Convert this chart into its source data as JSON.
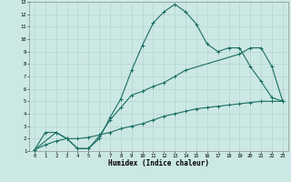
{
  "title": "",
  "xlabel": "Humidex (Indice chaleur)",
  "ylabel": "",
  "xlim": [
    -0.5,
    23.5
  ],
  "ylim": [
    1,
    13
  ],
  "xticks": [
    0,
    1,
    2,
    3,
    4,
    5,
    6,
    7,
    8,
    9,
    10,
    11,
    12,
    13,
    14,
    15,
    16,
    17,
    18,
    19,
    20,
    21,
    22,
    23
  ],
  "yticks": [
    1,
    2,
    3,
    4,
    5,
    6,
    7,
    8,
    9,
    10,
    11,
    12,
    13
  ],
  "background_color": "#cce8e4",
  "grid_color": "#b8d8d4",
  "line_color": "#1a6e65",
  "line1_x": [
    0,
    1,
    2,
    3,
    4,
    5,
    6,
    7,
    8,
    9,
    10,
    11,
    12,
    13,
    14,
    15,
    16,
    17,
    18,
    19,
    20,
    21,
    22,
    23
  ],
  "line1_y": [
    1.1,
    2.5,
    2.5,
    2.0,
    1.2,
    1.2,
    2.0,
    3.7,
    5.2,
    7.5,
    9.5,
    11.3,
    12.2,
    12.8,
    12.2,
    11.2,
    9.6,
    9.0,
    9.3,
    9.3,
    7.8,
    6.6,
    5.3,
    5.0
  ],
  "line2_x": [
    0,
    2,
    3,
    4,
    5,
    6,
    7,
    8,
    9,
    10,
    11,
    12,
    13,
    14,
    19,
    20,
    21,
    22,
    23
  ],
  "line2_y": [
    1.1,
    2.5,
    2.0,
    1.2,
    1.2,
    2.2,
    3.5,
    4.5,
    5.5,
    5.8,
    6.2,
    6.5,
    7.0,
    7.5,
    8.8,
    9.3,
    9.3,
    7.8,
    5.0
  ],
  "line3_x": [
    0,
    1,
    2,
    3,
    4,
    5,
    6,
    7,
    8,
    9,
    10,
    11,
    12,
    13,
    14,
    15,
    16,
    17,
    18,
    19,
    20,
    21,
    22,
    23
  ],
  "line3_y": [
    1.1,
    1.5,
    1.8,
    2.0,
    2.0,
    2.1,
    2.3,
    2.5,
    2.8,
    3.0,
    3.2,
    3.5,
    3.8,
    4.0,
    4.2,
    4.4,
    4.5,
    4.6,
    4.7,
    4.8,
    4.9,
    5.0,
    5.0,
    5.0
  ]
}
